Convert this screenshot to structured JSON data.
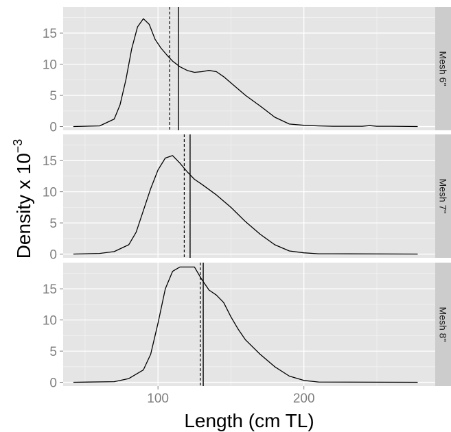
{
  "chart_data": {
    "type": "line",
    "xlabel": "Length (cm TL)",
    "ylabel_base": "Density x 10",
    "ylabel_exponent": "−3",
    "xlim": [
      35,
      290
    ],
    "x_ticks": [
      100,
      200
    ],
    "y_ticks": [
      0,
      5,
      10,
      15
    ],
    "grid": true,
    "colors": {
      "panel_background": "#e5e5e5",
      "grid_major": "#ffffff",
      "grid_minor": "#f2f2f2",
      "strip_background": "#cccccc",
      "line": "#000000"
    },
    "panels": [
      {
        "name": "Mesh 6\"",
        "ylim": [
          -0.6,
          19.2
        ],
        "solid_vline": 114,
        "dashed_vline": 108,
        "x": [
          42,
          60,
          70,
          74,
          78,
          82,
          86,
          90,
          94,
          98,
          102,
          106,
          110,
          115,
          120,
          125,
          130,
          135,
          140,
          145,
          150,
          160,
          170,
          180,
          190,
          200,
          210,
          220,
          230,
          240,
          245,
          250,
          260,
          278
        ],
        "values": [
          0,
          0.1,
          1.2,
          3.5,
          7.5,
          12.5,
          16.0,
          17.3,
          16.4,
          14.0,
          12.6,
          11.5,
          10.5,
          9.6,
          9.0,
          8.7,
          8.8,
          9.0,
          8.8,
          8.0,
          7.0,
          5.0,
          3.3,
          1.5,
          0.4,
          0.2,
          0.1,
          0.05,
          0.05,
          0.05,
          0.15,
          0.05,
          0.05,
          0
        ]
      },
      {
        "name": "Mesh 7\"",
        "ylim": [
          -0.6,
          19.2
        ],
        "solid_vline": 122,
        "dashed_vline": 118,
        "x": [
          42,
          60,
          70,
          80,
          85,
          90,
          95,
          100,
          105,
          110,
          115,
          120,
          125,
          130,
          140,
          150,
          160,
          170,
          180,
          190,
          200,
          210,
          220,
          278
        ],
        "values": [
          0,
          0.1,
          0.4,
          1.5,
          3.5,
          7.0,
          10.5,
          13.5,
          15.4,
          15.8,
          14.6,
          13.2,
          12.0,
          11.2,
          9.5,
          7.5,
          5.2,
          3.2,
          1.5,
          0.5,
          0.2,
          0.05,
          0.05,
          0
        ]
      },
      {
        "name": "Mesh 8\"",
        "ylim": [
          -0.6,
          19.2
        ],
        "solid_vline": 131,
        "dashed_vline": 129,
        "x": [
          42,
          70,
          80,
          90,
          95,
          100,
          105,
          110,
          115,
          120,
          125,
          130,
          135,
          140,
          145,
          150,
          155,
          160,
          170,
          180,
          190,
          200,
          210,
          278
        ],
        "values": [
          0,
          0.1,
          0.6,
          2.0,
          4.5,
          9.5,
          15.0,
          17.8,
          18.5,
          18.5,
          18.5,
          16.5,
          14.8,
          14.0,
          12.8,
          10.5,
          8.5,
          6.8,
          4.5,
          2.5,
          1.0,
          0.3,
          0.05,
          0
        ]
      }
    ]
  }
}
